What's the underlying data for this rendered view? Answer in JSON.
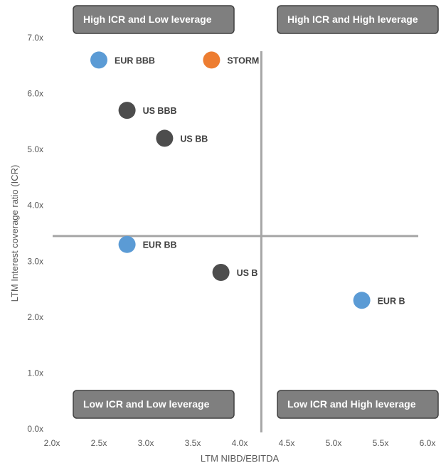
{
  "chart_data": {
    "type": "scatter",
    "xlabel": "LTM NIBD/EBITDA",
    "ylabel": "LTM Interest coverage ratio (ICR)",
    "xlim": [
      2.0,
      6.0
    ],
    "ylim": [
      0.0,
      7.0
    ],
    "x_ticks": [
      "2.0x",
      "2.5x",
      "3.0x",
      "3.5x",
      "4.0x",
      "4.5x",
      "5.0x",
      "5.5x",
      "6.0x"
    ],
    "y_ticks": [
      "0.0x",
      "1.0x",
      "2.0x",
      "3.0x",
      "4.0x",
      "5.0x",
      "6.0x",
      "7.0x"
    ],
    "grid": false,
    "points": [
      {
        "label": "EUR BBB",
        "x": 2.5,
        "y": 6.6,
        "color": "#5B9BD5"
      },
      {
        "label": "STORM",
        "x": 3.7,
        "y": 6.6,
        "color": "#ED7D31"
      },
      {
        "label": "US BBB",
        "x": 2.8,
        "y": 5.7,
        "color": "#4D4D4D"
      },
      {
        "label": "US BB",
        "x": 3.2,
        "y": 5.2,
        "color": "#4D4D4D"
      },
      {
        "label": "EUR BB",
        "x": 2.8,
        "y": 3.3,
        "color": "#5B9BD5"
      },
      {
        "label": "US B",
        "x": 3.8,
        "y": 2.8,
        "color": "#4D4D4D"
      },
      {
        "label": "EUR B",
        "x": 5.3,
        "y": 2.3,
        "color": "#5B9BD5"
      }
    ],
    "dividers": {
      "x": 4.23,
      "y": 3.45,
      "color": "#A6A6A6"
    },
    "quadrants": [
      {
        "text": "High ICR and Low leverage",
        "position": "top-left"
      },
      {
        "text": "High ICR and High leverage",
        "position": "top-right"
      },
      {
        "text": "Low ICR and Low leverage",
        "position": "bottom-left"
      },
      {
        "text": "Low ICR and High leverage",
        "position": "bottom-right"
      }
    ]
  }
}
